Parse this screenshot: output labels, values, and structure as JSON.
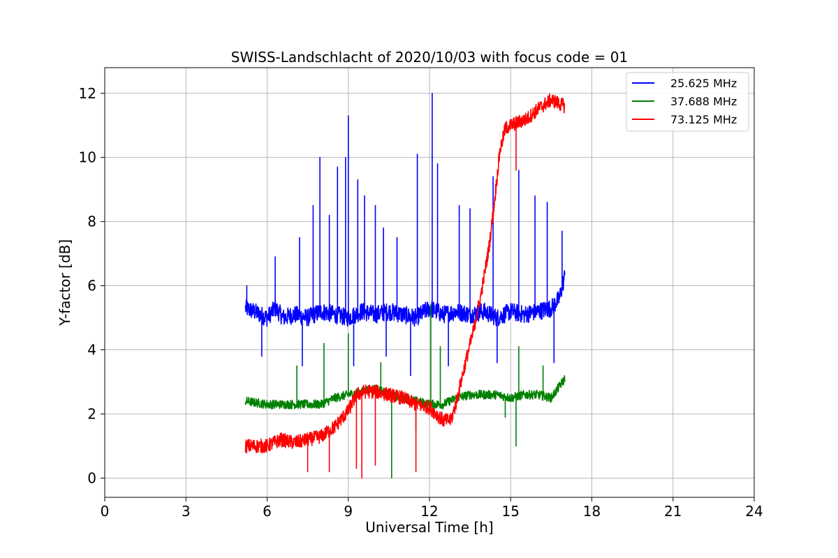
{
  "chart_data": {
    "type": "line",
    "title": "SWISS-Landschlacht of 2020/10/03 with focus code = 01",
    "xlabel": "Universal Time [h]",
    "ylabel": "Y-factor [dB]",
    "xlim": [
      0,
      24
    ],
    "ylim": [
      -0.6,
      12.8
    ],
    "xticks": [
      0,
      3,
      6,
      9,
      12,
      15,
      18,
      21,
      24
    ],
    "yticks": [
      0,
      2,
      4,
      6,
      8,
      10,
      12
    ],
    "xtick_labels": [
      "0",
      "3",
      "6",
      "9",
      "12",
      "15",
      "18",
      "21",
      "24"
    ],
    "ytick_labels": [
      "0",
      "2",
      "4",
      "6",
      "8",
      "10",
      "12"
    ],
    "grid": true,
    "legend_position": "top-right",
    "series": [
      {
        "name": "25.625 MHz",
        "color": "#0000ff",
        "x": [
          5.2,
          5.5,
          6.0,
          6.3,
          6.6,
          7.0,
          7.5,
          8.0,
          8.5,
          9.0,
          9.5,
          10.0,
          10.5,
          11.0,
          11.5,
          12.0,
          12.5,
          13.0,
          13.5,
          14.0,
          14.5,
          15.0,
          15.5,
          16.0,
          16.5,
          16.8,
          17.0
        ],
        "y": [
          5.3,
          5.2,
          5.0,
          5.3,
          5.0,
          5.1,
          5.0,
          5.2,
          5.1,
          5.0,
          5.2,
          5.1,
          5.2,
          5.1,
          5.0,
          5.3,
          5.1,
          5.2,
          5.1,
          5.2,
          5.0,
          5.2,
          5.1,
          5.2,
          5.3,
          5.6,
          6.3
        ],
        "spikes": [
          {
            "x": 5.25,
            "y": 6.0
          },
          {
            "x": 6.3,
            "y": 6.9
          },
          {
            "x": 7.2,
            "y": 7.5
          },
          {
            "x": 7.7,
            "y": 8.5
          },
          {
            "x": 7.95,
            "y": 10.0
          },
          {
            "x": 8.3,
            "y": 8.2
          },
          {
            "x": 8.6,
            "y": 9.7
          },
          {
            "x": 8.9,
            "y": 10.0
          },
          {
            "x": 9.0,
            "y": 11.3
          },
          {
            "x": 9.35,
            "y": 9.3
          },
          {
            "x": 9.6,
            "y": 8.8
          },
          {
            "x": 10.0,
            "y": 8.5
          },
          {
            "x": 10.3,
            "y": 7.8
          },
          {
            "x": 10.8,
            "y": 7.5
          },
          {
            "x": 11.55,
            "y": 10.1
          },
          {
            "x": 12.1,
            "y": 12.0
          },
          {
            "x": 12.3,
            "y": 9.8
          },
          {
            "x": 13.1,
            "y": 8.5
          },
          {
            "x": 13.5,
            "y": 8.4
          },
          {
            "x": 14.35,
            "y": 9.4
          },
          {
            "x": 15.3,
            "y": 9.6
          },
          {
            "x": 15.9,
            "y": 8.8
          },
          {
            "x": 16.35,
            "y": 8.6
          },
          {
            "x": 16.9,
            "y": 7.7
          }
        ],
        "dips": [
          {
            "x": 5.8,
            "y": 3.8
          },
          {
            "x": 7.3,
            "y": 3.5
          },
          {
            "x": 9.2,
            "y": 3.5
          },
          {
            "x": 10.4,
            "y": 3.8
          },
          {
            "x": 11.3,
            "y": 3.2
          },
          {
            "x": 12.7,
            "y": 3.5
          },
          {
            "x": 14.5,
            "y": 3.6
          },
          {
            "x": 16.6,
            "y": 3.6
          }
        ]
      },
      {
        "name": "37.688 MHz",
        "color": "#008000",
        "x": [
          5.2,
          6.0,
          7.0,
          8.0,
          8.5,
          9.0,
          9.5,
          10.0,
          10.5,
          11.0,
          11.5,
          12.0,
          12.5,
          13.0,
          13.5,
          14.0,
          14.5,
          15.0,
          15.5,
          16.0,
          16.5,
          17.0
        ],
        "y": [
          2.4,
          2.3,
          2.3,
          2.3,
          2.5,
          2.6,
          2.7,
          2.8,
          2.6,
          2.5,
          2.4,
          2.3,
          2.3,
          2.5,
          2.6,
          2.6,
          2.6,
          2.5,
          2.6,
          2.6,
          2.5,
          3.1
        ],
        "spikes": [
          {
            "x": 7.1,
            "y": 3.5
          },
          {
            "x": 8.1,
            "y": 4.2
          },
          {
            "x": 9.0,
            "y": 4.5
          },
          {
            "x": 10.2,
            "y": 3.6
          },
          {
            "x": 12.05,
            "y": 5.4
          },
          {
            "x": 12.4,
            "y": 4.1
          },
          {
            "x": 15.3,
            "y": 4.1
          },
          {
            "x": 16.2,
            "y": 3.5
          }
        ],
        "dips": [
          {
            "x": 10.6,
            "y": 0.0
          },
          {
            "x": 11.5,
            "y": 1.5
          },
          {
            "x": 15.2,
            "y": 1.0
          },
          {
            "x": 14.8,
            "y": 1.9
          }
        ]
      },
      {
        "name": "73.125 MHz",
        "color": "#ff0000",
        "x": [
          5.2,
          6.0,
          6.5,
          7.0,
          7.5,
          8.0,
          8.5,
          9.0,
          9.3,
          9.6,
          10.0,
          10.5,
          11.0,
          11.5,
          12.0,
          12.5,
          12.8,
          13.0,
          13.3,
          13.6,
          13.9,
          14.2,
          14.4,
          14.6,
          14.8,
          15.0,
          15.3,
          15.6,
          16.0,
          16.5,
          17.0
        ],
        "y": [
          1.0,
          1.0,
          1.2,
          1.1,
          1.2,
          1.3,
          1.6,
          2.1,
          2.6,
          2.7,
          2.7,
          2.6,
          2.5,
          2.3,
          2.2,
          1.8,
          1.8,
          2.4,
          3.5,
          4.5,
          5.7,
          7.2,
          8.6,
          10.2,
          10.9,
          11.0,
          11.1,
          11.2,
          11.5,
          11.8,
          11.6
        ],
        "spikes": [],
        "dips": [
          {
            "x": 7.5,
            "y": 0.2
          },
          {
            "x": 8.3,
            "y": 0.2
          },
          {
            "x": 9.3,
            "y": 0.3
          },
          {
            "x": 9.5,
            "y": 0.0
          },
          {
            "x": 10.0,
            "y": 0.4
          },
          {
            "x": 11.5,
            "y": 0.2
          },
          {
            "x": 15.2,
            "y": 9.6
          }
        ]
      }
    ]
  }
}
